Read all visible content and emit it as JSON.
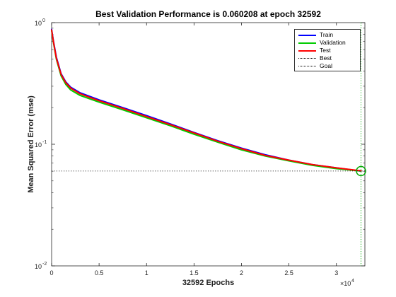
{
  "chart_data": {
    "type": "line",
    "title": "Best Validation Performance is 0.060208 at epoch 32592",
    "xlabel": "32592 Epochs",
    "ylabel": "Mean Squared Error  (mse)",
    "xscale": "linear",
    "yscale": "log",
    "xlim": [
      0,
      33000
    ],
    "ylim": [
      0.01,
      1
    ],
    "x_exponent_label": "×10",
    "x_exponent_power": "4",
    "x_tick_labels": [
      "0",
      "0.5",
      "1",
      "1.5",
      "2",
      "2.5",
      "3"
    ],
    "x_tick_values": [
      0,
      5000,
      10000,
      15000,
      20000,
      25000,
      30000
    ],
    "y_tick_mantissa": [
      "10",
      "10",
      "10"
    ],
    "y_tick_powers": [
      "-2",
      "-1",
      "0"
    ],
    "y_tick_values": [
      0.01,
      0.1,
      1
    ],
    "legend_position": "top-right",
    "grid": false,
    "series": [
      {
        "name": "Train",
        "color": "#0000ff",
        "x": [
          0,
          200,
          500,
          1000,
          1500,
          2000,
          3000,
          5000,
          7500,
          10000,
          12500,
          15000,
          17500,
          20000,
          22500,
          25000,
          27500,
          30000,
          32592
        ],
        "y": [
          0.88,
          0.7,
          0.52,
          0.38,
          0.325,
          0.295,
          0.265,
          0.232,
          0.2,
          0.172,
          0.147,
          0.125,
          0.107,
          0.093,
          0.082,
          0.074,
          0.068,
          0.064,
          0.0602
        ]
      },
      {
        "name": "Validation",
        "color": "#00cc00",
        "x": [
          0,
          200,
          500,
          1000,
          1500,
          2000,
          3000,
          5000,
          7500,
          10000,
          12500,
          15000,
          17500,
          20000,
          22500,
          25000,
          27500,
          30000,
          32592
        ],
        "y": [
          0.86,
          0.68,
          0.5,
          0.365,
          0.31,
          0.28,
          0.252,
          0.222,
          0.192,
          0.165,
          0.142,
          0.121,
          0.104,
          0.09,
          0.08,
          0.073,
          0.067,
          0.063,
          0.0602
        ]
      },
      {
        "name": "Test",
        "color": "#ff0000",
        "x": [
          0,
          200,
          500,
          1000,
          1500,
          2000,
          3000,
          5000,
          7500,
          10000,
          12500,
          15000,
          17500,
          20000,
          22500,
          25000,
          27500,
          30000,
          32592
        ],
        "y": [
          0.87,
          0.69,
          0.51,
          0.375,
          0.32,
          0.29,
          0.26,
          0.228,
          0.197,
          0.169,
          0.145,
          0.124,
          0.106,
          0.092,
          0.081,
          0.074,
          0.068,
          0.064,
          0.0605
        ]
      }
    ],
    "best": {
      "name": "Best",
      "epoch": 32592,
      "value": 0.060208,
      "color": "#00aa00"
    },
    "goal": {
      "name": "Goal",
      "value": 0
    }
  }
}
